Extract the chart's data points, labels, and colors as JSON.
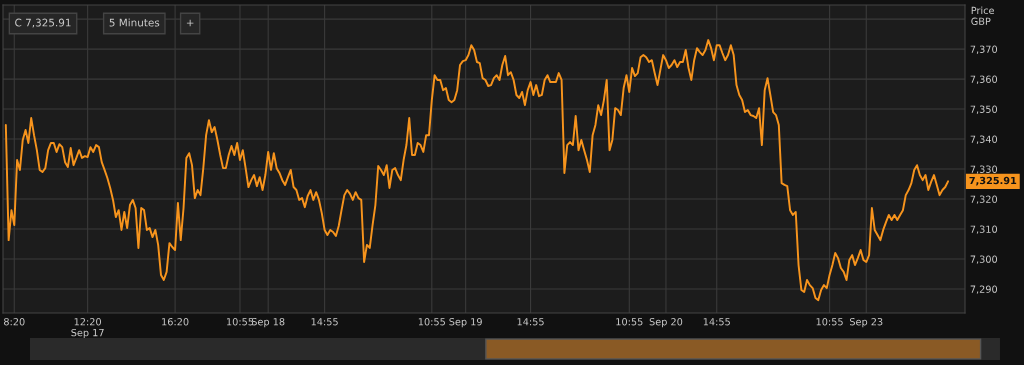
{
  "chart_data": {
    "type": "line",
    "ylabel": "Price\nGBP",
    "annotations": [
      "C 7,325.91",
      "5 Minutes",
      "+",
      "7,325.91"
    ],
    "categories": [
      null,
      null,
      null,
      "8:20",
      null,
      null,
      null,
      null,
      null,
      null,
      null,
      null,
      null,
      null,
      null,
      null,
      null,
      null,
      null,
      null,
      null,
      null,
      null,
      null,
      null,
      null,
      null,
      null,
      null,
      "12:20\nSep 17",
      null,
      null,
      null,
      null,
      null,
      null,
      null,
      null,
      null,
      null,
      null,
      null,
      null,
      null,
      null,
      null,
      null,
      null,
      null,
      null,
      null,
      null,
      null,
      null,
      null,
      null,
      null,
      null,
      null,
      null,
      "16:20",
      null,
      null,
      null,
      null,
      null,
      null,
      null,
      null,
      null,
      null,
      null,
      null,
      null,
      null,
      null,
      null,
      null,
      null,
      null,
      null,
      null,
      null,
      "10:55",
      null,
      null,
      null,
      null,
      null,
      null,
      null,
      null,
      null,
      "Sep 18",
      null,
      null,
      null,
      null,
      null,
      null,
      null,
      null,
      null,
      null,
      null,
      null,
      null,
      null,
      null,
      null,
      null,
      null,
      null,
      "14:55",
      null,
      null,
      null,
      null,
      null,
      null,
      null,
      null,
      null,
      null,
      null,
      null,
      null,
      null,
      null,
      null,
      null,
      null,
      null,
      null,
      null,
      null,
      null,
      null,
      null,
      null,
      null,
      null,
      null,
      null,
      null,
      null,
      null,
      null,
      null,
      null,
      null,
      "10:55",
      null,
      null,
      null,
      null,
      null,
      null,
      null,
      null,
      null,
      null,
      null,
      "Sep 19",
      null,
      null,
      null,
      null,
      null,
      null,
      null,
      null,
      null,
      null,
      null,
      null,
      null,
      null,
      null,
      null,
      null,
      null,
      null,
      null,
      null,
      null,
      "14:55",
      null,
      null,
      null,
      null,
      null,
      null,
      null,
      null,
      null,
      null,
      null,
      null,
      null,
      null,
      null,
      null,
      null,
      null,
      null,
      null,
      null,
      null,
      null,
      null,
      null,
      null,
      null,
      null,
      null,
      null,
      null,
      null,
      null,
      null,
      "10:55",
      null,
      null,
      null,
      null,
      null,
      null,
      null,
      null,
      null,
      null,
      null,
      null,
      "Sep 20",
      null,
      null,
      null,
      null,
      null,
      null,
      null,
      null,
      null,
      null,
      null,
      null,
      null,
      null,
      null,
      null,
      null,
      "14:55",
      null,
      null,
      null,
      null,
      null,
      null,
      null,
      null,
      null,
      null,
      null,
      null,
      null,
      null,
      null,
      null,
      null,
      null,
      null,
      null,
      null,
      null,
      null,
      null,
      null,
      null,
      null,
      null,
      null,
      null,
      null,
      null,
      null,
      null,
      null,
      null,
      null,
      null,
      null,
      "10:55",
      null,
      null,
      null,
      null,
      null,
      null,
      null,
      null,
      null,
      null,
      null,
      null,
      "Sep 23",
      null,
      null,
      null,
      null,
      null,
      null,
      null,
      null,
      null,
      null,
      null,
      null,
      null,
      null,
      null,
      null,
      null,
      null,
      null,
      null,
      null,
      null,
      null,
      null,
      null,
      null,
      null,
      null,
      null
    ],
    "series": [
      {
        "color": "#f7941d",
        "values": [
          7344.7,
          7306.3,
          7316.3,
          7311.3,
          7333,
          7329.7,
          7339.7,
          7343,
          7338.7,
          7347,
          7341.3,
          7336.3,
          7329.7,
          7329,
          7330.3,
          7336.3,
          7338.7,
          7338.7,
          7335.7,
          7338.3,
          7337.3,
          7332.3,
          7330.7,
          7337,
          7331.3,
          7333.7,
          7336.3,
          7333.7,
          7334.3,
          7334,
          7337.3,
          7335.7,
          7338,
          7337.3,
          7332.3,
          7329.7,
          7327,
          7323.7,
          7319.7,
          7314,
          7316.3,
          7309.7,
          7315.7,
          7310.3,
          7318,
          7319.7,
          7317,
          7303.7,
          7317,
          7316.3,
          7309.7,
          7310.3,
          7307.3,
          7309.7,
          7304.7,
          7294.7,
          7293,
          7295.7,
          7305.3,
          7304,
          7303,
          7318.7,
          7306.3,
          7317,
          7333.7,
          7335.3,
          7331.3,
          7320.3,
          7323,
          7321.3,
          7330.3,
          7341.3,
          7346.3,
          7342.3,
          7344,
          7339.7,
          7334.7,
          7330.3,
          7330.3,
          7334.7,
          7337.7,
          7334.7,
          7338.7,
          7333,
          7336.3,
          7330.3,
          7324,
          7326.3,
          7328,
          7324.3,
          7327.3,
          7323,
          7328,
          7335.7,
          7329.7,
          7335.3,
          7330.3,
          7328.7,
          7326.3,
          7324.7,
          7327.3,
          7329.7,
          7324,
          7323,
          7319.7,
          7320.3,
          7317.3,
          7321,
          7323,
          7319.7,
          7322.3,
          7319.7,
          7315.3,
          7309.7,
          7308,
          7309.7,
          7309,
          7307.7,
          7311,
          7316.3,
          7321.3,
          7323,
          7321.7,
          7319.7,
          7322.3,
          7320.3,
          7319.7,
          7299,
          7304.7,
          7303.7,
          7311.3,
          7318,
          7331,
          7329.7,
          7328,
          7331.3,
          7323.7,
          7329.7,
          7330.3,
          7328,
          7326.3,
          7333,
          7338,
          7347,
          7334.7,
          7334.7,
          7338.7,
          7338,
          7335.7,
          7341.3,
          7341.3,
          7353,
          7361.3,
          7359.7,
          7359.7,
          7356.3,
          7357,
          7353,
          7352.3,
          7353,
          7356.3,
          7364.7,
          7366,
          7366.3,
          7368,
          7371.3,
          7369.7,
          7365.7,
          7365.3,
          7360.3,
          7359.7,
          7357.7,
          7358,
          7360.3,
          7361.3,
          7359.7,
          7364.7,
          7367.7,
          7361.3,
          7362.3,
          7359.7,
          7354.7,
          7353.7,
          7355.7,
          7351.3,
          7356.3,
          7359,
          7354.7,
          7358,
          7354.3,
          7354.7,
          7359.7,
          7361.3,
          7359,
          7359,
          7359,
          7362,
          7359.7,
          7328.7,
          7338,
          7339,
          7338,
          7347.7,
          7336.3,
          7339.7,
          7336.3,
          7333,
          7329,
          7341.3,
          7344.7,
          7351.3,
          7348,
          7353,
          7359.7,
          7336.3,
          7339.7,
          7350.3,
          7349.7,
          7348,
          7357,
          7361.3,
          7355.7,
          7363.7,
          7361,
          7362,
          7367.3,
          7368,
          7367.3,
          7365.7,
          7366.3,
          7362,
          7358,
          7363,
          7368,
          7366.3,
          7363.7,
          7364.7,
          7366.3,
          7364,
          7365.7,
          7365.7,
          7369.7,
          7363.7,
          7359.7,
          7366.3,
          7370.3,
          7369,
          7368,
          7369.7,
          7373,
          7370.3,
          7366.3,
          7371.3,
          7371.3,
          7368.7,
          7366.3,
          7368,
          7371.3,
          7368,
          7358,
          7354.7,
          7353,
          7349,
          7349.7,
          7348,
          7347.7,
          7347,
          7350.3,
          7338,
          7356.3,
          7360.3,
          7354.7,
          7349,
          7348,
          7344.7,
          7325.3,
          7324.7,
          7324.3,
          7316.3,
          7314.7,
          7315.7,
          7298,
          7289.7,
          7289,
          7293,
          7291.3,
          7290.3,
          7287,
          7286.3,
          7289.7,
          7291.3,
          7290.3,
          7294.7,
          7298,
          7302,
          7300.3,
          7297,
          7295.7,
          7293,
          7299.7,
          7301.3,
          7298,
          7300.3,
          7303,
          7299.7,
          7299,
          7301.3,
          7317,
          7309.7,
          7308,
          7306.3,
          7309.7,
          7312.3,
          7314.7,
          7313,
          7314.7,
          7313,
          7314.7,
          7316.3,
          7321.3,
          7323,
          7325.3,
          7329.7,
          7331.3,
          7328,
          7326.3,
          7328,
          7323,
          7325.7,
          7328,
          7324.7,
          7321.3,
          7323,
          7324,
          7325.9
        ]
      }
    ],
    "ylim": [
      7282,
      7384.7
    ],
    "yticks": [
      {
        "value": 7290,
        "label": "7,290"
      },
      {
        "value": 7300,
        "label": "7,300"
      },
      {
        "value": 7310,
        "label": "7,310"
      },
      {
        "value": 7320,
        "label": "7,320"
      },
      {
        "value": 7330,
        "label": "7,330"
      },
      {
        "value": 7340,
        "label": "7,340"
      },
      {
        "value": 7350,
        "label": "7,350"
      },
      {
        "value": 7360,
        "label": "7,360"
      },
      {
        "value": 7370,
        "label": "7,370"
      },
      {
        "value": 7380,
        "label": null
      }
    ],
    "grid": true,
    "legend": false
  }
}
